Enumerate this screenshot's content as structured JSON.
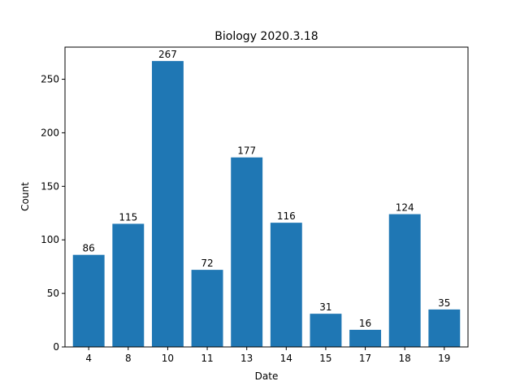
{
  "chart_data": {
    "type": "bar",
    "title": "Biology 2020.3.18",
    "xlabel": "Date",
    "ylabel": "Count",
    "categories": [
      "4",
      "8",
      "10",
      "11",
      "13",
      "14",
      "15",
      "17",
      "18",
      "19"
    ],
    "values": [
      86,
      115,
      267,
      72,
      177,
      116,
      31,
      16,
      124,
      35
    ],
    "ylim": [
      0,
      280
    ],
    "yticks": [
      0,
      50,
      100,
      150,
      200,
      250
    ],
    "bar_color": "#1f77b4",
    "grid": false,
    "legend": "none"
  }
}
